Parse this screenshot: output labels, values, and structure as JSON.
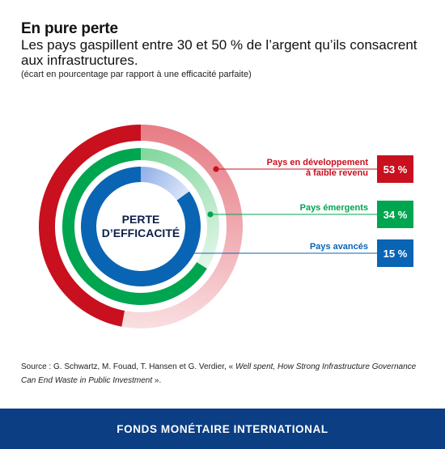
{
  "header": {
    "title": "En pure perte",
    "subtitle": "Les pays gaspillent entre 30 et 50 % de l’argent qu’ils consacrent aux infrastructures.",
    "note": "(écart en pourcentage par rapport à une efficacité parfaite)"
  },
  "chart_data": {
    "type": "donut",
    "title": "En pure perte",
    "center_label": [
      "PERTE",
      "D’EFFICACITÉ"
    ],
    "unit": "%",
    "series": [
      {
        "name_lines": [
          "Pays en développement",
          "à faible revenu"
        ],
        "value": 53,
        "label": "53 %",
        "color": "#c8101e",
        "ring": "outer"
      },
      {
        "name_lines": [
          "Pays émergents"
        ],
        "value": 34,
        "label": "34 %",
        "color": "#00a54f",
        "ring": "middle"
      },
      {
        "name_lines": [
          "Pays avancés"
        ],
        "value": 15,
        "label": "15 %",
        "color": "#0a64b4",
        "ring": "inner"
      }
    ]
  },
  "source": {
    "prefix": "Source : G. Schwartz, M. Fouad, T. Hansen et G. Verdier, « ",
    "title": "Well spent, How Strong Infrastructure Governance Can End Waste in Public Investment",
    "suffix": " »."
  },
  "footer": {
    "text": "FONDS MONÉTAIRE INTERNATIONAL"
  },
  "colors": {
    "footer_bg": "#0b3e82",
    "red": "#c8101e",
    "green": "#00a54f",
    "blue": "#0a64b4"
  }
}
